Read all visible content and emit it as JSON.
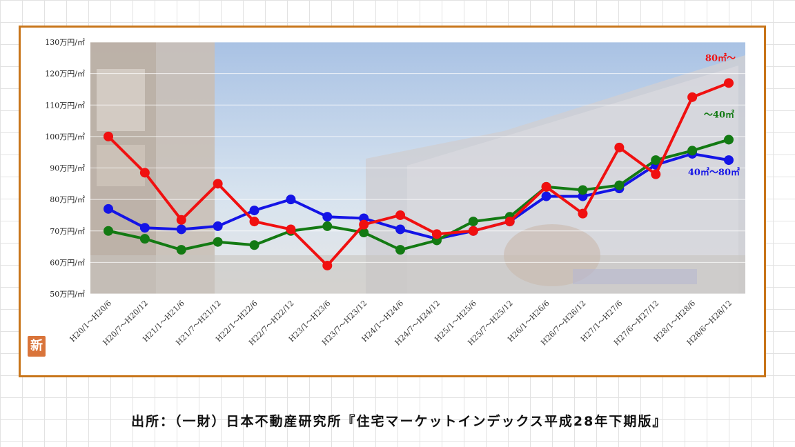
{
  "badge": "新",
  "source_note": "出所：（一財）日本不動産研究所『住宅マーケットインデックス平成28年下期版』",
  "chart_data": {
    "type": "line",
    "ylim": [
      50,
      130
    ],
    "y_ticks": [
      {
        "value": 130,
        "label": "130万円/㎡"
      },
      {
        "value": 120,
        "label": "120万円/㎡"
      },
      {
        "value": 110,
        "label": "110万円/㎡"
      },
      {
        "value": 100,
        "label": "100万円/㎡"
      },
      {
        "value": 90,
        "label": "90万円/㎡"
      },
      {
        "value": 80,
        "label": "80万円/㎡"
      },
      {
        "value": 70,
        "label": "70万円/㎡"
      },
      {
        "value": 60,
        "label": "60万円/㎡"
      },
      {
        "value": 50,
        "label": "50万円/㎡"
      }
    ],
    "grid": true,
    "categories": [
      "H20/1～H20/6",
      "H20/7～H20/12",
      "H21/1～H21/6",
      "H21/7～H21/12",
      "H22/1～H22/6",
      "H22/7～H22/12",
      "H23/1～H23/6",
      "H23/7～H23/12",
      "H24/1～H24/6",
      "H24/7～H24/12",
      "H25/1～H25/6",
      "H25/7～H25/12",
      "H26/1～H26/6",
      "H26/7～H26/12",
      "H27/1～H27/6",
      "H27/6～H27/12",
      "H28/1～H28/6",
      "H28/6～H28/12"
    ],
    "series": [
      {
        "name": "40㎡～80㎡",
        "color": "#1414e6",
        "values": [
          77,
          71,
          70.5,
          71.5,
          76.5,
          80,
          74.5,
          74,
          70.5,
          67.5,
          70,
          73,
          81,
          81,
          83.5,
          91,
          94.5,
          92.5
        ]
      },
      {
        "name": "～40㎡",
        "color": "#137a13",
        "values": [
          70,
          67.5,
          64,
          66.5,
          65.5,
          70,
          71.5,
          69.5,
          64,
          67,
          73,
          74.5,
          84,
          83,
          84.5,
          92.5,
          95.5,
          99
        ]
      },
      {
        "name": "80㎡～",
        "color": "#f01010",
        "values": [
          100,
          88.5,
          73.5,
          85,
          73,
          70.5,
          59,
          72,
          75,
          69,
          70,
          73,
          84,
          75.5,
          96.5,
          88,
          112.5,
          117
        ]
      }
    ]
  }
}
